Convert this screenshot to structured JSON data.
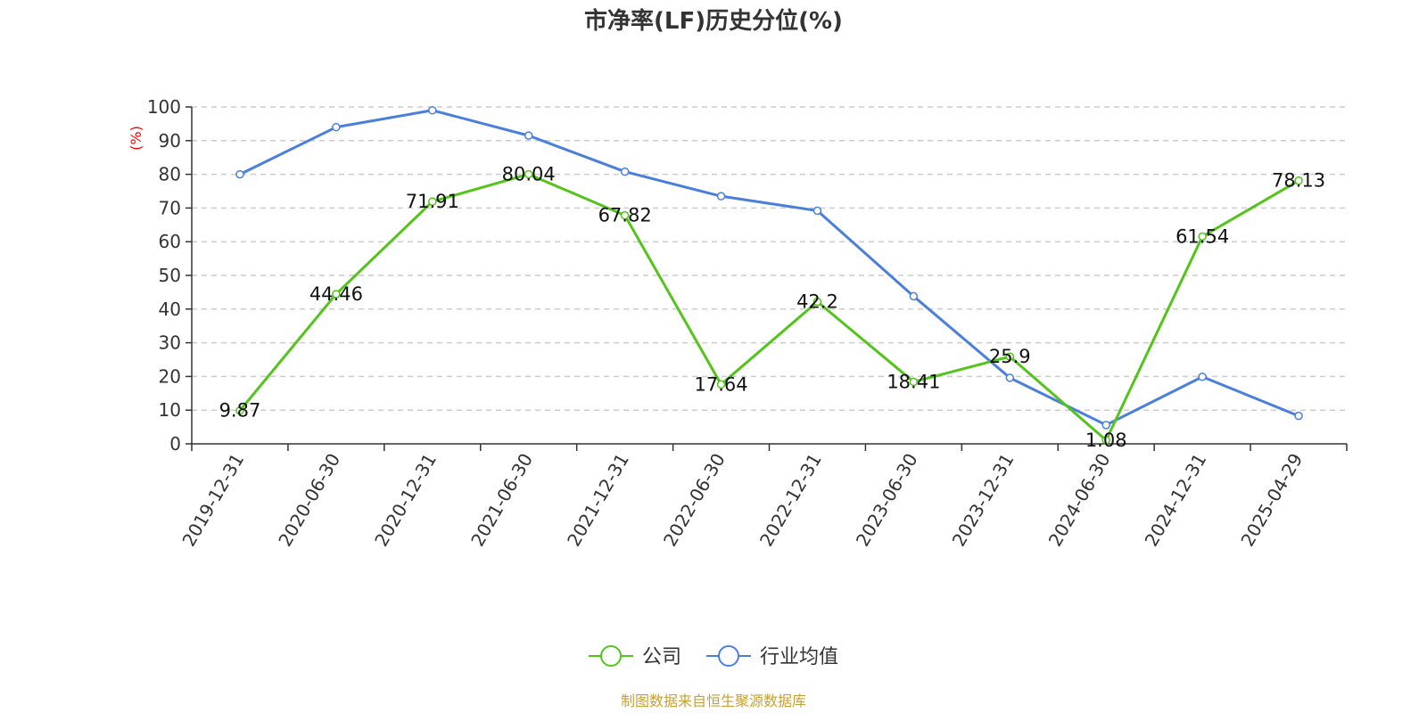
{
  "chart_data": {
    "type": "line",
    "title": "市净率(LF)历史分位(%)",
    "ylabel": "(%)",
    "ylim": [
      0,
      100
    ],
    "yticks": [
      0,
      10,
      20,
      30,
      40,
      50,
      60,
      70,
      80,
      90,
      100
    ],
    "grid": true,
    "legend_position": "bottom-center",
    "categories": [
      "2019-12-31",
      "2020-06-30",
      "2020-12-31",
      "2021-06-30",
      "2021-12-31",
      "2022-06-30",
      "2022-12-31",
      "2023-06-30",
      "2023-12-31",
      "2024-06-30",
      "2024-12-31",
      "2025-04-29"
    ],
    "series": [
      {
        "name": "公司",
        "color": "#52c41a",
        "values": [
          9.87,
          44.46,
          71.91,
          80.04,
          67.82,
          17.64,
          42.2,
          18.41,
          25.9,
          1.08,
          61.54,
          78.13
        ],
        "labels": [
          "9.87",
          "44.46",
          "71.91",
          "80.04",
          "67.82",
          "17.64",
          "42.2",
          "18.41",
          "25.9",
          "1.08",
          "61.54",
          "78.13"
        ]
      },
      {
        "name": "行业均值",
        "color": "#4a7fdc",
        "values": [
          80.0,
          94.0,
          99.0,
          91.5,
          80.8,
          73.5,
          69.2,
          43.8,
          19.6,
          5.6,
          19.9,
          8.3
        ]
      }
    ],
    "colors": {
      "axis": "#333333",
      "grid": "#cccccc",
      "unit": "#ff0000"
    }
  },
  "source": {
    "text": "制图数据来自恒生聚源数据库",
    "color": "#c8a032"
  }
}
